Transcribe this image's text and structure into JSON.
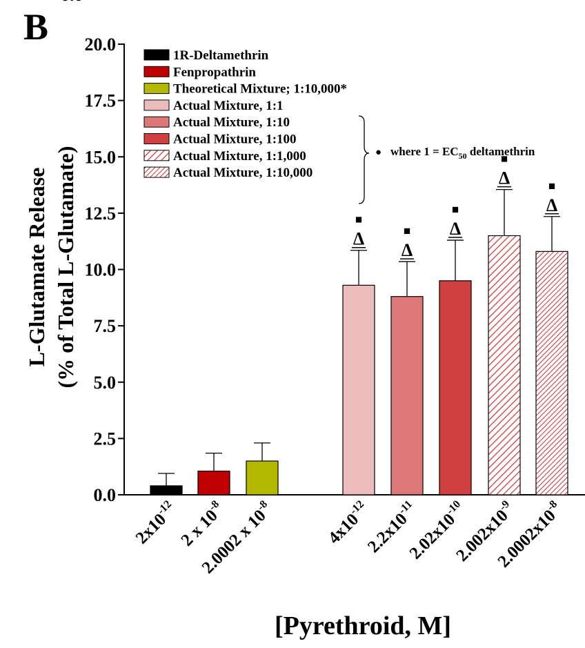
{
  "panel_label": "B",
  "cut_tick_label": "0.0",
  "chart_data": {
    "type": "bar",
    "title": "",
    "xlabel": "[Pyrethroid, M]",
    "ylabel_line1": "L-Glutamate Release",
    "ylabel_line2": "(% of Total L-Glutamate)",
    "ylim": [
      0,
      20
    ],
    "yticks": [
      "0.0",
      "2.5",
      "5.0",
      "7.5",
      "10.0",
      "12.5",
      "15.0",
      "17.5",
      "20.0"
    ],
    "grid": false,
    "legend_position": "top-left",
    "colors": {
      "deltamethrin": "#000000",
      "fenpropathrin": "#c00000",
      "theoretical": "#b5b800",
      "mix1": "#ecbcbd",
      "mix10": "#dc7878",
      "mix100": "#d04040",
      "hatch": "#d03030"
    },
    "bars": [
      {
        "label_base": "2x10",
        "label_exp": "-12",
        "value": 0.4,
        "error": 0.55,
        "series": "1R-Deltamethrin",
        "fill": "deltamethrin",
        "pattern": "solid",
        "sig": false
      },
      {
        "label_base": "2 x 10",
        "label_exp": "-8",
        "value": 1.05,
        "error": 0.8,
        "series": "Fenpropathrin",
        "fill": "fenpropathrin",
        "pattern": "solid",
        "sig": false
      },
      {
        "label_base": "2.0002 x 10",
        "label_exp": "-8",
        "value": 1.5,
        "error": 0.8,
        "series": "Theoretical Mixture; 1:10,000*",
        "fill": "theoretical",
        "pattern": "solid",
        "sig": false
      },
      {
        "label_base": "4x10",
        "label_exp": "-12",
        "value": 9.3,
        "error": 1.55,
        "series": "Actual Mixture, 1:1",
        "fill": "mix1",
        "pattern": "solid",
        "sig": true
      },
      {
        "label_base": "2.2x10",
        "label_exp": "-11",
        "value": 8.8,
        "error": 1.55,
        "series": "Actual Mixture, 1:10",
        "fill": "mix10",
        "pattern": "solid",
        "sig": true
      },
      {
        "label_base": "2.02x10",
        "label_exp": "-10",
        "value": 9.5,
        "error": 1.8,
        "series": "Actual Mixture, 1:100",
        "fill": "mix100",
        "pattern": "solid",
        "sig": true
      },
      {
        "label_base": "2.002x10",
        "label_exp": "-9",
        "value": 11.5,
        "error": 2.05,
        "series": "Actual Mixture, 1:1,000",
        "fill": "hatch",
        "pattern": "hatch-wide",
        "sig": true
      },
      {
        "label_base": "2.0002x10",
        "label_exp": "-8",
        "value": 10.8,
        "error": 1.55,
        "series": "Actual Mixture, 1:10,000",
        "fill": "hatch",
        "pattern": "hatch-dense",
        "sig": true
      }
    ],
    "legend": [
      {
        "label": "1R-Deltamethrin",
        "fill": "deltamethrin",
        "pattern": "solid"
      },
      {
        "label": "Fenpropathrin",
        "fill": "fenpropathrin",
        "pattern": "solid"
      },
      {
        "label": "Theoretical Mixture; 1:10,000*",
        "fill": "theoretical",
        "pattern": "solid"
      },
      {
        "label": "Actual Mixture, 1:1",
        "fill": "mix1",
        "pattern": "solid"
      },
      {
        "label": "Actual Mixture, 1:10",
        "fill": "mix10",
        "pattern": "solid"
      },
      {
        "label": "Actual Mixture, 1:100",
        "fill": "mix100",
        "pattern": "solid"
      },
      {
        "label": "Actual Mixture, 1:1,000",
        "fill": "hatch",
        "pattern": "hatch-wide"
      },
      {
        "label": "Actual Mixture, 1:10,000",
        "fill": "hatch",
        "pattern": "hatch-dense"
      }
    ],
    "annotation": {
      "prefix": "where 1 = EC",
      "subscript": "50",
      "suffix": " deltamethrin"
    },
    "sig_markers": {
      "delta": "Δ",
      "square": "■",
      "bullet": "●"
    }
  }
}
